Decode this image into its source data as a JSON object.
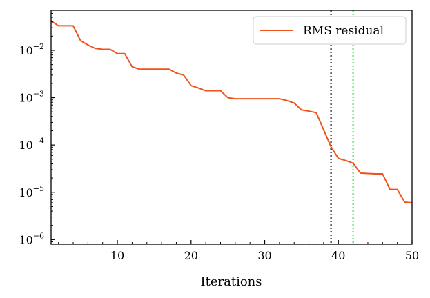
{
  "chart_data": {
    "type": "line",
    "title": "",
    "xlabel": "Iterations",
    "ylabel": "",
    "xlim": [
      1,
      50
    ],
    "ylim": [
      8e-07,
      0.07
    ],
    "yscale": "log",
    "grid": false,
    "legend_position": "top-right",
    "x_ticks": [
      10,
      20,
      30,
      40,
      50
    ],
    "x_tick_labels": [
      "10",
      "20",
      "30",
      "40",
      "50"
    ],
    "y_ticks": [
      1e-06,
      1e-05,
      0.0001,
      0.001,
      0.01
    ],
    "y_tick_labels": [
      {
        "base": "10",
        "exp": "−6"
      },
      {
        "base": "10",
        "exp": "−5"
      },
      {
        "base": "10",
        "exp": "−4"
      },
      {
        "base": "10",
        "exp": "−3"
      },
      {
        "base": "10",
        "exp": "−2"
      }
    ],
    "series": [
      {
        "name": "RMS residual",
        "color": "#f0521c",
        "x": [
          1,
          2,
          3,
          4,
          5,
          6,
          7,
          8,
          9,
          10,
          11,
          12,
          13,
          14,
          15,
          16,
          17,
          18,
          19,
          20,
          21,
          22,
          23,
          24,
          25,
          26,
          27,
          28,
          29,
          30,
          31,
          32,
          33,
          34,
          35,
          36,
          37,
          38,
          39,
          40,
          41,
          42,
          43,
          44,
          45,
          46,
          47,
          48,
          49,
          50
        ],
        "y": [
          0.042,
          0.033,
          0.033,
          0.033,
          0.016,
          0.013,
          0.011,
          0.0105,
          0.0105,
          0.0085,
          0.0085,
          0.0045,
          0.004,
          0.004,
          0.004,
          0.004,
          0.004,
          0.0033,
          0.003,
          0.0018,
          0.0016,
          0.0014,
          0.0014,
          0.0014,
          0.001,
          0.00095,
          0.00095,
          0.00095,
          0.00095,
          0.00095,
          0.00095,
          0.00095,
          0.00087,
          0.00077,
          0.00055,
          0.00052,
          0.00048,
          0.00021,
          9.1e-05,
          5.2e-05,
          4.7e-05,
          4.1e-05,
          2.55e-05,
          2.5e-05,
          2.45e-05,
          2.45e-05,
          1.15e-05,
          1.15e-05,
          6.2e-06,
          6e-06
        ]
      }
    ],
    "vlines": [
      {
        "x": 39,
        "color": "#000000",
        "style": "dotted"
      },
      {
        "x": 42,
        "color": "#33dd33",
        "style": "dotted"
      }
    ]
  }
}
